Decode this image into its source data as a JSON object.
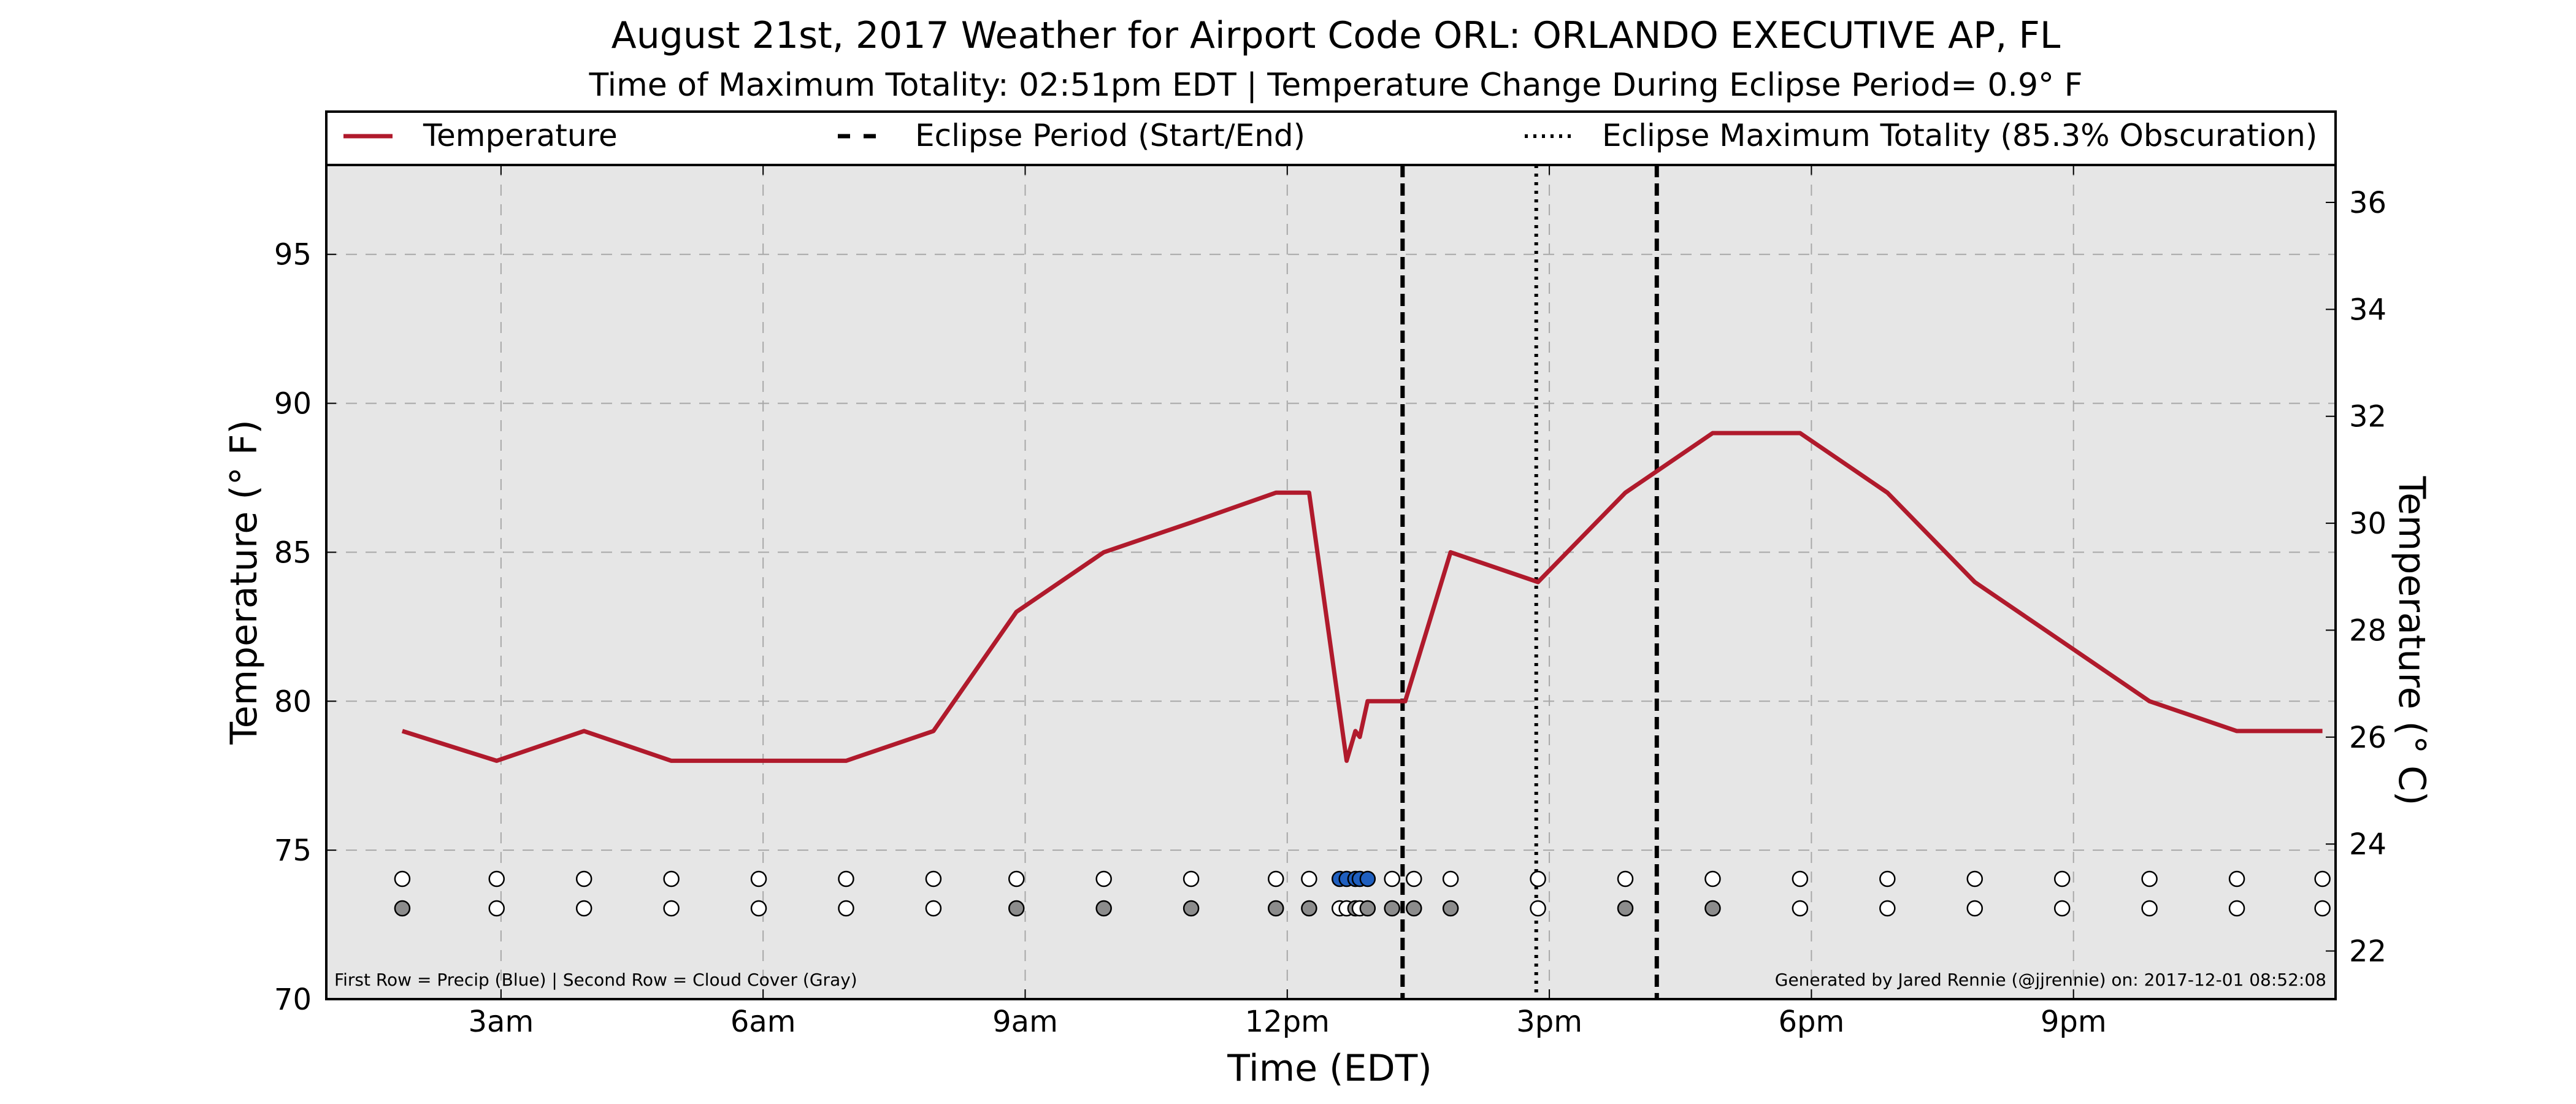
{
  "chart_data": {
    "type": "line",
    "title": "August 21st, 2017 Weather for Airport Code ORL: ORLANDO EXECUTIVE AP, FL",
    "subtitle": "Time of Maximum Totality: 02:51pm EDT | Temperature Change During Eclipse Period= 0.9° F",
    "xlabel": "Time (EDT)",
    "ylabel": "Temperature (° F)",
    "y2label": "Temperature (° C)",
    "xlim": [
      1.0,
      24.0
    ],
    "ylim": [
      70,
      98
    ],
    "y2lim": [
      21.1,
      36.7
    ],
    "x_ticks": [
      {
        "x": 3,
        "label": "3am"
      },
      {
        "x": 6,
        "label": "6am"
      },
      {
        "x": 9,
        "label": "9am"
      },
      {
        "x": 12,
        "label": "12pm"
      },
      {
        "x": 15,
        "label": "3pm"
      },
      {
        "x": 18,
        "label": "6pm"
      },
      {
        "x": 21,
        "label": "9pm"
      }
    ],
    "y_ticks": [
      70,
      75,
      80,
      85,
      90,
      95
    ],
    "y2_ticks": [
      22,
      24,
      26,
      28,
      30,
      32,
      34,
      36
    ],
    "grid": true,
    "legend": {
      "placement": "top",
      "entries": [
        "Temperature",
        "Eclipse Period (Start/End)",
        "Eclipse Maximum Totality (85.3% Obscuration)"
      ]
    },
    "series": [
      {
        "name": "Temperature",
        "color": "#b01a2c",
        "x": [
          1.87,
          2.95,
          3.95,
          4.95,
          5.95,
          6.95,
          7.95,
          8.9,
          9.9,
          10.9,
          11.87,
          12.25,
          12.68,
          12.78,
          12.83,
          12.92,
          13.35,
          13.87,
          14.87,
          15.87,
          16.87,
          17.87,
          18.87,
          19.87,
          20.87,
          21.87,
          22.87,
          23.85
        ],
        "y": [
          79,
          78,
          79,
          78,
          78,
          78,
          79,
          83,
          85,
          86,
          87,
          87,
          78,
          79,
          78.8,
          80,
          80,
          85,
          84,
          87,
          89,
          89,
          87,
          84,
          82,
          80,
          79,
          79
        ]
      }
    ],
    "eclipse_start": 13.32,
    "eclipse_end": 16.23,
    "max_totality": 14.85,
    "precip_row": {
      "label": "Precip",
      "color": "#1f5fbf",
      "x": [
        1.87,
        2.95,
        3.95,
        4.95,
        5.95,
        6.95,
        7.95,
        8.9,
        9.9,
        10.9,
        11.87,
        12.25,
        12.6,
        12.68,
        12.78,
        12.83,
        12.92,
        13.2,
        13.45,
        13.87,
        14.87,
        15.87,
        16.87,
        17.87,
        18.87,
        19.87,
        20.87,
        21.87,
        22.87,
        23.85
      ],
      "filled": [
        false,
        false,
        false,
        false,
        false,
        false,
        false,
        false,
        false,
        false,
        false,
        false,
        true,
        true,
        true,
        true,
        true,
        false,
        false,
        false,
        false,
        false,
        false,
        false,
        false,
        false,
        false,
        false,
        false,
        false
      ]
    },
    "cloud_row": {
      "label": "Cloud Cover",
      "color": "#8c8c8c",
      "x": [
        1.87,
        2.95,
        3.95,
        4.95,
        5.95,
        6.95,
        7.95,
        8.9,
        9.9,
        10.9,
        11.87,
        12.25,
        12.6,
        12.68,
        12.78,
        12.83,
        12.92,
        13.2,
        13.45,
        13.87,
        14.87,
        15.87,
        16.87,
        17.87,
        18.87,
        19.87,
        20.87,
        21.87,
        22.87,
        23.85
      ],
      "filled": [
        true,
        false,
        false,
        false,
        false,
        false,
        false,
        true,
        true,
        true,
        true,
        true,
        false,
        false,
        true,
        false,
        true,
        true,
        true,
        true,
        false,
        true,
        true,
        false,
        false,
        false,
        false,
        false,
        false,
        false
      ]
    },
    "footnote_left": "First Row = Precip (Blue) | Second Row = Cloud Cover (Gray)",
    "footnote_right": "Generated by Jared Rennie (@jjrennie) on: 2017-12-01 08:52:08"
  }
}
